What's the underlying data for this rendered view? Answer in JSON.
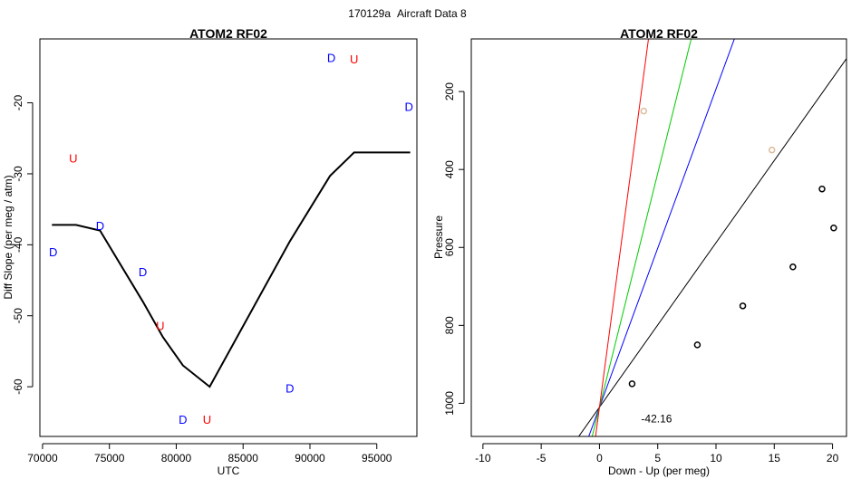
{
  "figure": {
    "supertitle_id": "170129a",
    "supertitle_text": "Aircraft Data 8"
  },
  "chart_data": [
    {
      "type": "line",
      "title": "ATOM2 RF02",
      "xlabel": "UTC",
      "ylabel": "Diff Slope (per meg / atm)",
      "xlim": [
        69800,
        98000
      ],
      "ylim": [
        -67,
        -11
      ],
      "xticks": [
        70000,
        75000,
        80000,
        85000,
        90000,
        95000
      ],
      "yticks": [
        -60,
        -50,
        -40,
        -30,
        -20
      ],
      "line": {
        "color": "#000000",
        "x": [
          70700,
          72500,
          74300,
          77500,
          79000,
          80500,
          82500,
          88500,
          91500,
          93300,
          97500
        ],
        "y": [
          -37.2,
          -37.2,
          -38.0,
          -48.0,
          -53.0,
          -57.0,
          -60.0,
          -39.5,
          -30.3,
          -27.0,
          -27.0
        ]
      },
      "markers": [
        {
          "label": "D",
          "color": "#0000ff",
          "x": 70800,
          "y": -41
        },
        {
          "label": "U",
          "color": "#ff0000",
          "x": 72300,
          "y": -27.8
        },
        {
          "label": "D",
          "color": "#0000ff",
          "x": 74300,
          "y": -37.3
        },
        {
          "label": "D",
          "color": "#0000ff",
          "x": 77500,
          "y": -43.8
        },
        {
          "label": "U",
          "color": "#ff0000",
          "x": 78800,
          "y": -51.4
        },
        {
          "label": "D",
          "color": "#0000ff",
          "x": 80500,
          "y": -64.6
        },
        {
          "label": "U",
          "color": "#ff0000",
          "x": 82300,
          "y": -64.6
        },
        {
          "label": "D",
          "color": "#0000ff",
          "x": 88500,
          "y": -60.2
        },
        {
          "label": "D",
          "color": "#0000ff",
          "x": 91600,
          "y": -13.6
        },
        {
          "label": "U",
          "color": "#ff0000",
          "x": 93300,
          "y": -13.8
        },
        {
          "label": "D",
          "color": "#0000ff",
          "x": 97400,
          "y": -20.5
        }
      ]
    },
    {
      "type": "scatter",
      "title": "ATOM2 RF02",
      "xlabel": "Down - Up (per meg)",
      "ylabel": "Pressure",
      "xlim": [
        -11,
        21.2
      ],
      "ylim_reversed": [
        1085,
        65
      ],
      "xticks": [
        -10,
        -5,
        0,
        5,
        10,
        15,
        20
      ],
      "yticks": [
        200,
        400,
        600,
        800,
        1000
      ],
      "points": [
        {
          "x": 2.8,
          "y": 950,
          "color": "#000000"
        },
        {
          "x": 8.4,
          "y": 850,
          "color": "#000000"
        },
        {
          "x": 12.3,
          "y": 750,
          "color": "#000000"
        },
        {
          "x": 16.6,
          "y": 650,
          "color": "#000000"
        },
        {
          "x": 20.1,
          "y": 550,
          "color": "#000000"
        },
        {
          "x": 19.1,
          "y": 450,
          "color": "#000000"
        },
        {
          "x": 14.8,
          "y": 350,
          "color": "#ddbb99"
        },
        {
          "x": 3.8,
          "y": 250,
          "color": "#ddbb99"
        }
      ],
      "lines": [
        {
          "color": "#000000",
          "p1": [
            0,
            1010
          ],
          "slope_dx_per_dp": -0.0237
        },
        {
          "color": "#0000ff",
          "p1": [
            0,
            1010
          ],
          "slope_dx_per_dp": -0.01225
        },
        {
          "color": "#00cc00",
          "p1": [
            0,
            1010
          ],
          "slope_dx_per_dp": -0.00833
        },
        {
          "color": "#ff0000",
          "p1": [
            0,
            1010
          ],
          "slope_dx_per_dp": -0.00445
        }
      ],
      "annotation": "-42.16",
      "annotation_pos": {
        "x": 4.9,
        "y": 1040
      }
    }
  ]
}
